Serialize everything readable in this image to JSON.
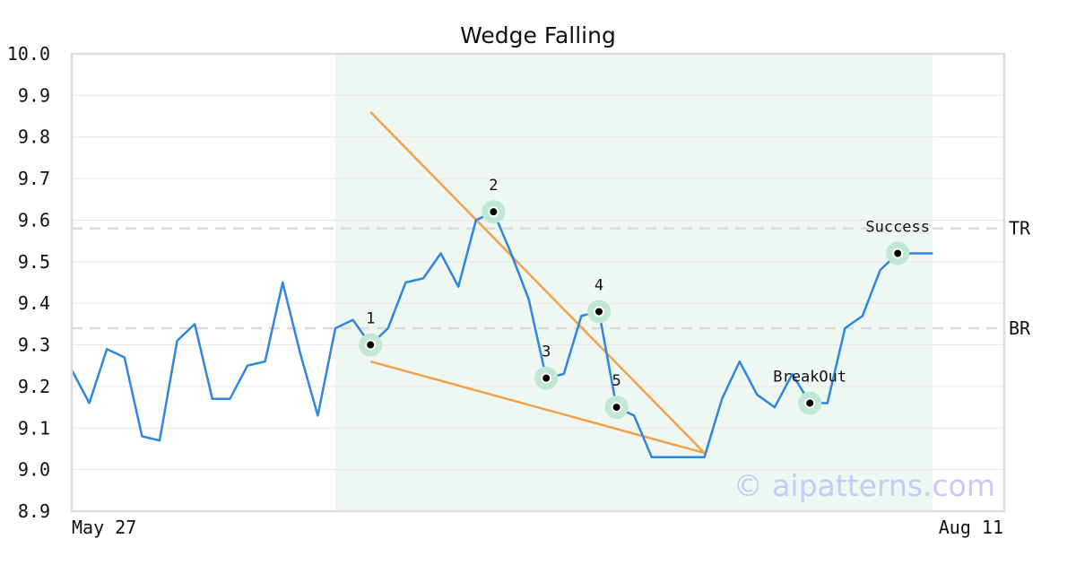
{
  "chart_data": {
    "type": "line",
    "title": "Wedge Falling",
    "xlabel": "",
    "ylabel": "",
    "x_start_label": "May 27",
    "x_end_label": "Aug 11",
    "ylim": [
      8.9,
      10.0
    ],
    "yticks": [
      "8.9",
      "9.0",
      "9.1",
      "9.2",
      "9.3",
      "9.4",
      "9.5",
      "9.6",
      "9.7",
      "9.8",
      "9.9",
      "10.0"
    ],
    "grid": true,
    "series": [
      {
        "color": "#2e86de",
        "values": [
          9.24,
          9.16,
          9.29,
          9.27,
          9.08,
          9.07,
          9.31,
          9.35,
          9.17,
          9.17,
          9.25,
          9.26,
          9.45,
          9.28,
          9.13,
          9.34,
          9.36,
          9.3,
          9.34,
          9.45,
          9.46,
          9.52,
          9.44,
          9.6,
          9.62,
          9.52,
          9.41,
          9.22,
          9.23,
          9.37,
          9.38,
          9.15,
          9.13,
          9.03,
          9.03,
          9.03,
          9.03,
          9.17,
          9.26,
          9.18,
          9.15,
          9.23,
          9.16,
          9.16,
          9.34,
          9.37,
          9.48,
          9.52,
          9.52,
          9.52
        ]
      }
    ],
    "pattern_range": [
      15,
      49
    ],
    "pattern_color": "#eef7f2",
    "trendlines": {
      "color": "#f5a04a",
      "upper": {
        "from": [
          17,
          9.86
        ],
        "to": [
          36,
          9.04
        ]
      },
      "lower": {
        "from": [
          17,
          9.26
        ],
        "to": [
          36,
          9.04
        ]
      }
    },
    "reference_lines": [
      {
        "label": "TR",
        "value": 9.58
      },
      {
        "label": "BR",
        "value": 9.34
      }
    ],
    "points": [
      {
        "label": "1",
        "index": 17,
        "value": 9.3
      },
      {
        "label": "2",
        "index": 24,
        "value": 9.62
      },
      {
        "label": "3",
        "index": 27,
        "value": 9.22
      },
      {
        "label": "4",
        "index": 30,
        "value": 9.38
      },
      {
        "label": "5",
        "index": 31,
        "value": 9.15
      },
      {
        "label": "BreakOut",
        "index": 42,
        "value": 9.16
      },
      {
        "label": "Success",
        "index": 47,
        "value": 9.52
      }
    ],
    "point_halo_color": "#bfe9d3"
  },
  "watermark": "© aipatterns.com"
}
